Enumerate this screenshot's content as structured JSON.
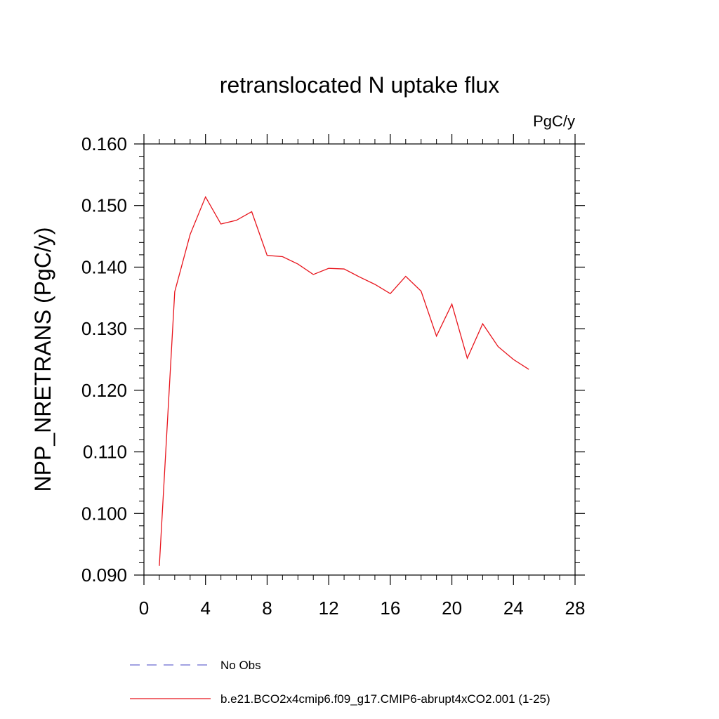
{
  "chart_data": {
    "type": "line",
    "title": "retranslocated N uptake flux",
    "units_label": "PgC/y",
    "ylabel": "NPP_NRETRANS  (PgC/y)",
    "xlabel": "",
    "xlim": [
      0,
      28
    ],
    "ylim": [
      0.09,
      0.16
    ],
    "x_ticks": [
      "0",
      "4",
      "8",
      "12",
      "16",
      "20",
      "24",
      "28"
    ],
    "y_ticks": [
      "0.090",
      "0.100",
      "0.110",
      "0.120",
      "0.130",
      "0.140",
      "0.150",
      "0.160"
    ],
    "grid": false,
    "legend_position": "bottom",
    "colors": {
      "obs": "#6a6ad0",
      "model": "#e8141c"
    },
    "series": [
      {
        "name": "No Obs",
        "style": "dashed",
        "x": [],
        "y": []
      },
      {
        "name": "b.e21.BCO2x4cmip6.f09_g17.CMIP6-abrupt4xCO2.001 (1-25)",
        "style": "solid",
        "x": [
          1,
          2,
          3,
          4,
          5,
          6,
          7,
          8,
          9,
          10,
          11,
          12,
          13,
          14,
          15,
          16,
          17,
          18,
          19,
          20,
          21,
          22,
          23,
          24,
          25
        ],
        "y": [
          0.0915,
          0.136,
          0.1453,
          0.1514,
          0.147,
          0.1476,
          0.149,
          0.1419,
          0.1417,
          0.1405,
          0.1388,
          0.1398,
          0.1397,
          0.1384,
          0.1372,
          0.1357,
          0.1385,
          0.1361,
          0.1288,
          0.134,
          0.1252,
          0.1308,
          0.1271,
          0.125,
          0.1234
        ]
      }
    ]
  }
}
